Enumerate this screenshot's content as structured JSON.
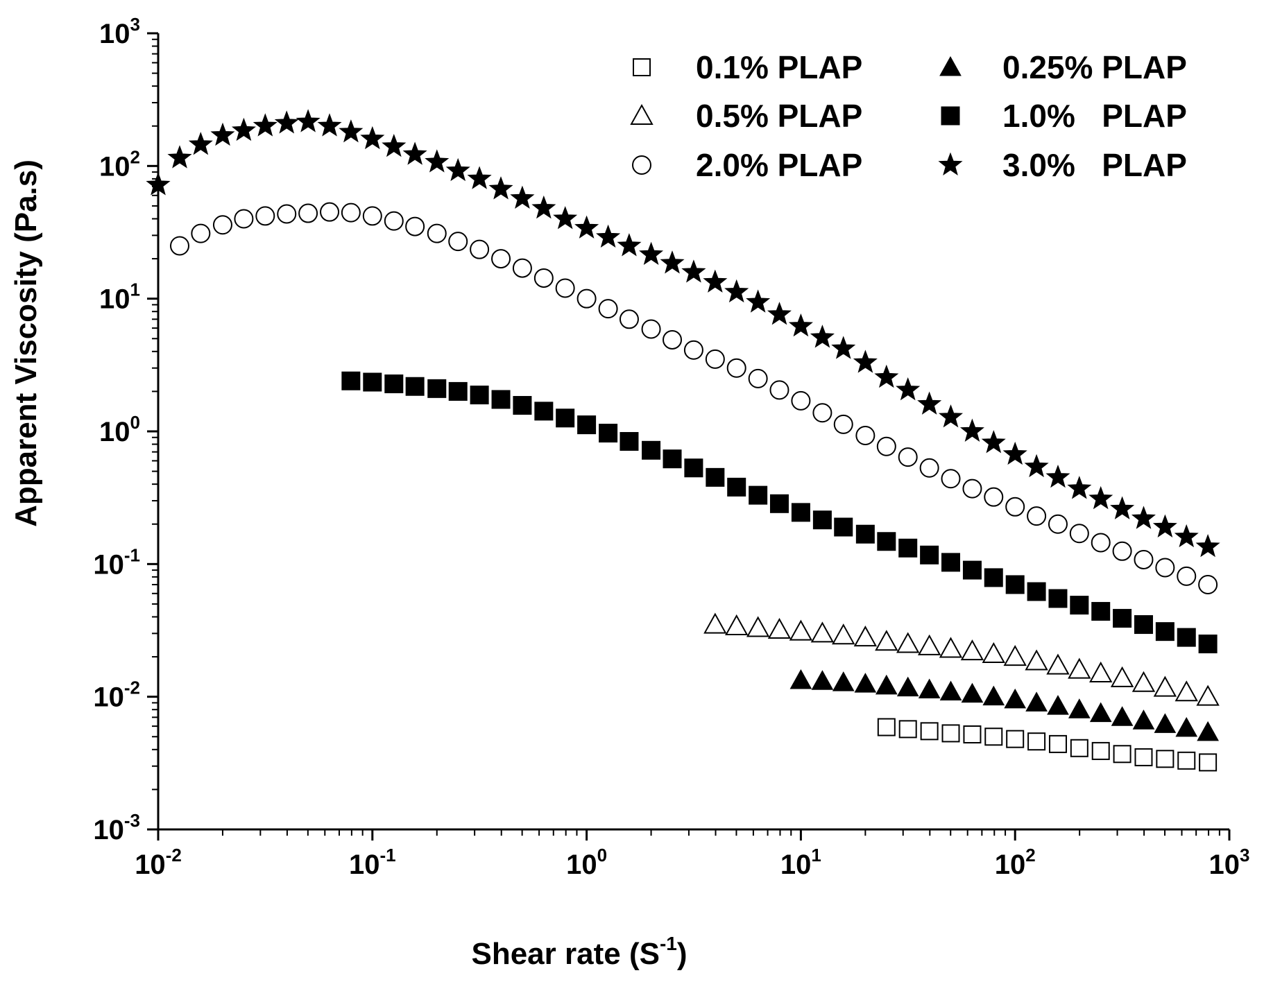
{
  "chart_data": {
    "type": "scatter",
    "title": "",
    "xlabel": "Shear rate (S",
    "xlabel_exp": "-1",
    "xlabel_close": ")",
    "ylabel": "Apparent Viscosity (Pa.s)",
    "xscale": "log",
    "yscale": "log",
    "xlim": [
      0.01,
      1000
    ],
    "ylim": [
      0.001,
      1000
    ],
    "x_ticks": [
      {
        "value": 0.01,
        "base": "10",
        "exp": "-2"
      },
      {
        "value": 0.1,
        "base": "10",
        "exp": "-1"
      },
      {
        "value": 1,
        "base": "10",
        "exp": "0"
      },
      {
        "value": 10,
        "base": "10",
        "exp": "1"
      },
      {
        "value": 100,
        "base": "10",
        "exp": "2"
      },
      {
        "value": 1000,
        "base": "10",
        "exp": "3"
      }
    ],
    "y_ticks": [
      {
        "value": 0.001,
        "base": "10",
        "exp": "-3"
      },
      {
        "value": 0.01,
        "base": "10",
        "exp": "-2"
      },
      {
        "value": 0.1,
        "base": "10",
        "exp": "-1"
      },
      {
        "value": 1,
        "base": "10",
        "exp": "0"
      },
      {
        "value": 10,
        "base": "10",
        "exp": "1"
      },
      {
        "value": 100,
        "base": "10",
        "exp": "2"
      },
      {
        "value": 1000,
        "base": "10",
        "exp": "3"
      }
    ],
    "legend_position": "top-right",
    "series": [
      {
        "name": "0.1% PLAP",
        "marker": "square-open",
        "x": [
          25.1,
          31.6,
          39.8,
          50.1,
          63.1,
          79.4,
          100,
          125.9,
          158.5,
          199.5,
          251.2,
          316.2,
          398.1,
          501.2,
          631,
          794.3
        ],
        "y": [
          0.0059,
          0.0057,
          0.0055,
          0.0053,
          0.0052,
          0.005,
          0.0048,
          0.0046,
          0.0044,
          0.0041,
          0.0039,
          0.0037,
          0.0035,
          0.0034,
          0.0033,
          0.0032
        ]
      },
      {
        "name": "0.25% PLAP",
        "marker": "triangle-filled",
        "x": [
          10,
          12.6,
          15.8,
          20,
          25.1,
          31.6,
          39.8,
          50.1,
          63.1,
          79.4,
          100,
          125.9,
          158.5,
          199.5,
          251.2,
          316.2,
          398.1,
          501.2,
          631,
          794.3
        ],
        "y": [
          0.0133,
          0.0131,
          0.0128,
          0.0125,
          0.0121,
          0.0117,
          0.0113,
          0.0109,
          0.0105,
          0.01,
          0.0095,
          0.009,
          0.0085,
          0.008,
          0.0075,
          0.007,
          0.0066,
          0.0062,
          0.0058,
          0.0054
        ]
      },
      {
        "name": "0.5% PLAP",
        "marker": "triangle-open",
        "x": [
          3.98,
          5.01,
          6.31,
          7.94,
          10,
          12.6,
          15.8,
          20,
          25.1,
          31.6,
          39.8,
          50.1,
          63.1,
          79.4,
          100,
          125.9,
          158.5,
          199.5,
          251.2,
          316.2,
          398.1,
          501.2,
          631,
          794.3
        ],
        "y": [
          0.035,
          0.034,
          0.033,
          0.032,
          0.031,
          0.03,
          0.029,
          0.028,
          0.026,
          0.025,
          0.024,
          0.023,
          0.022,
          0.021,
          0.02,
          0.0185,
          0.0172,
          0.016,
          0.015,
          0.0138,
          0.0127,
          0.0117,
          0.0108,
          0.01
        ]
      },
      {
        "name": "1.0%   PLAP",
        "marker": "square-filled",
        "x": [
          0.0794,
          0.1,
          0.126,
          0.158,
          0.2,
          0.251,
          0.316,
          0.398,
          0.501,
          0.631,
          0.794,
          1,
          1.26,
          1.58,
          2,
          2.51,
          3.16,
          3.98,
          5.01,
          6.31,
          7.94,
          10,
          12.6,
          15.8,
          20,
          25.1,
          31.6,
          39.8,
          50.1,
          63.1,
          79.4,
          100,
          125.9,
          158.5,
          199.5,
          251.2,
          316.2,
          398.1,
          501.2,
          631,
          794.3
        ],
        "y": [
          2.4,
          2.35,
          2.28,
          2.18,
          2.1,
          2.0,
          1.88,
          1.74,
          1.57,
          1.42,
          1.26,
          1.12,
          0.97,
          0.84,
          0.72,
          0.62,
          0.53,
          0.45,
          0.38,
          0.33,
          0.285,
          0.245,
          0.215,
          0.19,
          0.168,
          0.148,
          0.132,
          0.117,
          0.103,
          0.09,
          0.079,
          0.07,
          0.062,
          0.055,
          0.049,
          0.044,
          0.039,
          0.035,
          0.031,
          0.028,
          0.025
        ]
      },
      {
        "name": "2.0% PLAP",
        "marker": "circle-open",
        "x": [
          0.0126,
          0.0158,
          0.02,
          0.0251,
          0.0316,
          0.0398,
          0.0501,
          0.0631,
          0.0794,
          0.1,
          0.126,
          0.158,
          0.2,
          0.251,
          0.316,
          0.398,
          0.501,
          0.631,
          0.794,
          1,
          1.26,
          1.58,
          2,
          2.51,
          3.16,
          3.98,
          5.01,
          6.31,
          7.94,
          10,
          12.6,
          15.8,
          20,
          25.1,
          31.6,
          39.8,
          50.1,
          63.1,
          79.4,
          100,
          125.9,
          158.5,
          199.5,
          251.2,
          316.2,
          398.1,
          501.2,
          631,
          794.3
        ],
        "y": [
          25,
          31,
          36,
          40,
          42,
          43.5,
          44,
          45,
          44.5,
          42,
          38.5,
          35,
          31,
          27,
          23.5,
          20,
          17,
          14.3,
          12,
          10,
          8.4,
          7.0,
          5.9,
          4.9,
          4.1,
          3.5,
          3.0,
          2.5,
          2.05,
          1.7,
          1.38,
          1.13,
          0.93,
          0.77,
          0.64,
          0.53,
          0.44,
          0.37,
          0.32,
          0.27,
          0.23,
          0.2,
          0.17,
          0.145,
          0.125,
          0.108,
          0.094,
          0.081,
          0.07
        ]
      },
      {
        "name": "3.0%   PLAP",
        "marker": "star-filled",
        "x": [
          0.01,
          0.0126,
          0.0158,
          0.02,
          0.0251,
          0.0316,
          0.0398,
          0.0501,
          0.0631,
          0.0794,
          0.1,
          0.126,
          0.158,
          0.2,
          0.251,
          0.316,
          0.398,
          0.501,
          0.631,
          0.794,
          1,
          1.26,
          1.58,
          2,
          2.51,
          3.16,
          3.98,
          5.01,
          6.31,
          7.94,
          10,
          12.6,
          15.8,
          20,
          25.1,
          31.6,
          39.8,
          50.1,
          63.1,
          79.4,
          100,
          125.9,
          158.5,
          199.5,
          251.2,
          316.2,
          398.1,
          501.2,
          631,
          794.3
        ],
        "y": [
          72,
          115,
          145,
          170,
          185,
          200,
          210,
          215,
          200,
          180,
          160,
          140,
          122,
          107,
          92,
          80,
          67,
          57,
          48,
          40,
          34,
          29,
          25,
          21.5,
          18.5,
          15.8,
          13.3,
          11.2,
          9.4,
          7.6,
          6.2,
          5.1,
          4.2,
          3.3,
          2.55,
          2.05,
          1.6,
          1.28,
          1.0,
          0.82,
          0.67,
          0.54,
          0.45,
          0.37,
          0.31,
          0.26,
          0.22,
          0.19,
          0.16,
          0.135
        ]
      }
    ]
  }
}
